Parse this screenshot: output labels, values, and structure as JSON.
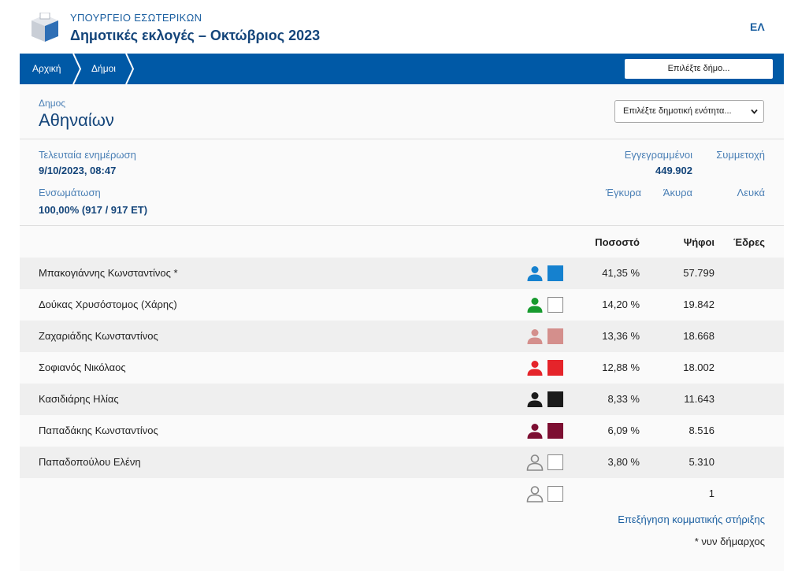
{
  "header": {
    "ministry": "ΥΠΟΥΡΓΕΙΟ ΕΣΩΤΕΡΙΚΩΝ",
    "title": "Δημοτικές εκλογές – Οκτώβριος 2023",
    "language": "ΕΛ"
  },
  "nav": {
    "home": "Αρχική",
    "municipalities": "Δήμοι",
    "select_municipality": "Επιλέξτε δήμο..."
  },
  "municipality": {
    "label": "Δημος",
    "name": "Αθηναίων",
    "unit_select_value": "Επιλέξτε δημοτική ενότητα..."
  },
  "info": {
    "last_update_label": "Τελευταία ενημέρωση",
    "last_update_value": "9/10/2023, 08:47",
    "integration_label": "Ενσωμάτωση",
    "integration_value": "100,00% (917 / 917 ΕΤ)",
    "registered_label": "Εγγεγραμμένοι",
    "registered_value": "449.902",
    "turnout_label": "Συμμετοχή",
    "valid_label": "Έγκυρα",
    "invalid_label": "Άκυρα",
    "blank_label": "Λευκά"
  },
  "table": {
    "headers": {
      "percent": "Ποσοστό",
      "votes": "Ψήφοι",
      "seats": "Έδρες"
    },
    "rows": [
      {
        "name": "Μπακογιάννης Κωνσταντίνος *",
        "color": "#1581cf",
        "person_color": "#1581cf",
        "percent": "41,35 %",
        "votes": "57.799",
        "outline": false
      },
      {
        "name": "Δούκας Χρυσόστομος (Χάρης)",
        "color": "#ffffff",
        "person_color": "#179a2e",
        "percent": "14,20 %",
        "votes": "19.842",
        "outline": false
      },
      {
        "name": "Ζαχαριάδης Κωνσταντίνος",
        "color": "#d48f8c",
        "person_color": "#d48f8c",
        "percent": "13,36 %",
        "votes": "18.668",
        "outline": false
      },
      {
        "name": "Σοφιανός Νικόλαος",
        "color": "#e5242a",
        "person_color": "#e5242a",
        "percent": "12,88 %",
        "votes": "18.002",
        "outline": false
      },
      {
        "name": "Κασιδιάρης Ηλίας",
        "color": "#1a1a1a",
        "person_color": "#1a1a1a",
        "percent": "8,33 %",
        "votes": "11.643",
        "outline": false
      },
      {
        "name": "Παπαδάκης Κωνσταντίνος",
        "color": "#7d0f32",
        "person_color": "#7d0f32",
        "percent": "6,09 %",
        "votes": "8.516",
        "outline": false
      },
      {
        "name": "Παπαδοπούλου Ελένη",
        "color": "#ffffff",
        "person_color": "#888888",
        "percent": "3,80 %",
        "votes": "5.310",
        "outline": true
      },
      {
        "name": "",
        "color": "#ffffff",
        "person_color": "#888888",
        "percent": "",
        "votes": "1",
        "outline": true
      }
    ]
  },
  "footer": {
    "party_support_link": "Επεξήγηση κομματικής στήριξης",
    "footnote": "* νυν δήμαρχος"
  }
}
